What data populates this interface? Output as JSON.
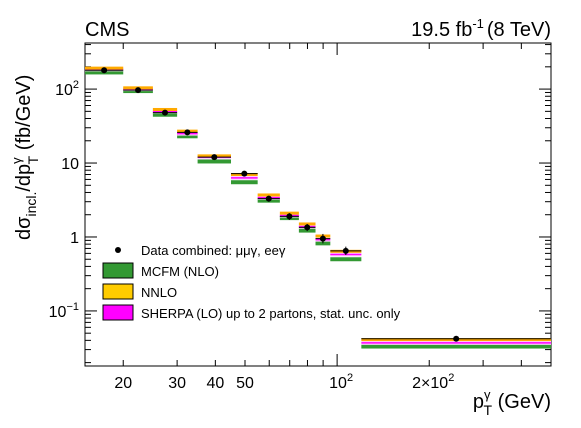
{
  "chart_data": {
    "type": "scatter",
    "experiment_label": "CMS",
    "lumi_label": {
      "value": "19.5 fb",
      "sup": "-1",
      "energy": "(8 TeV)"
    },
    "ylabel": {
      "d": "d",
      "sigma": "σ",
      "sub1": "incl.",
      "slash": "/dp",
      "sup2": "γ",
      "sub2": "T",
      "unit": " (fb/GeV)"
    },
    "xlabel": {
      "p": "p",
      "sup": "γ",
      "sub": "T",
      "unit": " (GeV)"
    },
    "x_scale": "log",
    "y_scale": "log",
    "xlim": [
      15,
      500
    ],
    "ylim": [
      0.018,
      420
    ],
    "x_ticks": [
      {
        "value": 20,
        "label": "20"
      },
      {
        "value": 30,
        "label": "30"
      },
      {
        "value": 40,
        "label": "40"
      },
      {
        "value": 50,
        "label": "50"
      },
      {
        "value": 100,
        "label": "10",
        "sup": "2"
      },
      {
        "value": 200,
        "label": "2×10",
        "sup": "2"
      }
    ],
    "y_ticks": [
      {
        "value": 0.1,
        "label": "10",
        "sup": "−1"
      },
      {
        "value": 1,
        "label": "1"
      },
      {
        "value": 10,
        "label": "10"
      },
      {
        "value": 100,
        "label": "10",
        "sup": "2"
      }
    ],
    "bins": [
      {
        "low": 15,
        "high": 20,
        "data": 180,
        "data_err_low": 165,
        "data_err_high": 195,
        "mcfm": 168,
        "nnlo": 192,
        "sherpa": 185
      },
      {
        "low": 20,
        "high": 25,
        "data": 97,
        "data_err_low": 91,
        "data_err_high": 103,
        "mcfm": 94,
        "nnlo": 104,
        "sherpa": 100
      },
      {
        "low": 25,
        "high": 30,
        "data": 48,
        "data_err_low": 45,
        "data_err_high": 51,
        "mcfm": 45,
        "nnlo": 53,
        "sherpa": 50
      },
      {
        "low": 30,
        "high": 35,
        "data": 26,
        "data_err_low": 24.5,
        "data_err_high": 27.5,
        "mcfm": 23,
        "nnlo": 27,
        "sherpa": 25
      },
      {
        "low": 35,
        "high": 45,
        "data": 12,
        "data_err_low": 11,
        "data_err_high": 13,
        "mcfm": 10.5,
        "nnlo": 12.5,
        "sherpa": 12
      },
      {
        "low": 45,
        "high": 55,
        "data": 7.2,
        "data_err_low": 6.6,
        "data_err_high": 7.8,
        "mcfm": 5.5,
        "nnlo": 7.0,
        "sherpa": 6.3
      },
      {
        "low": 55,
        "high": 65,
        "data": 3.3,
        "data_err_low": 3.0,
        "data_err_high": 3.6,
        "mcfm": 3.1,
        "nnlo": 3.7,
        "sherpa": 3.4
      },
      {
        "low": 65,
        "high": 75,
        "data": 1.9,
        "data_err_low": 1.7,
        "data_err_high": 2.1,
        "mcfm": 1.8,
        "nnlo": 2.1,
        "sherpa": 1.95
      },
      {
        "low": 75,
        "high": 85,
        "data": 1.35,
        "data_err_low": 1.2,
        "data_err_high": 1.5,
        "mcfm": 1.22,
        "nnlo": 1.5,
        "sherpa": 1.38
      },
      {
        "low": 85,
        "high": 95,
        "data": 0.95,
        "data_err_low": 0.82,
        "data_err_high": 1.1,
        "mcfm": 0.82,
        "nnlo": 1.03,
        "sherpa": 0.92
      },
      {
        "low": 95,
        "high": 120,
        "data": 0.65,
        "data_err_low": 0.57,
        "data_err_high": 0.74,
        "mcfm": 0.5,
        "nnlo": 0.64,
        "sherpa": 0.58
      },
      {
        "low": 120,
        "high": 500,
        "data": 0.042,
        "data_err_low": 0.04,
        "data_err_high": 0.044,
        "mcfm": 0.033,
        "nnlo": 0.041,
        "sherpa": 0.037
      }
    ],
    "legend": {
      "placement": "bottom-left",
      "entries": [
        {
          "key": "data",
          "label": "Data combined: μμγ, eeγ",
          "kind": "marker"
        },
        {
          "key": "mcfm",
          "label": "MCFM (NLO)",
          "kind": "box",
          "fill": "#339933",
          "stroke": "#000000"
        },
        {
          "key": "nnlo",
          "label": "NNLO",
          "kind": "box",
          "fill": "#ffcc00",
          "stroke": "#000000"
        },
        {
          "key": "sherpa",
          "label": "SHERPA (LO) up to 2 partons, stat. unc. only",
          "kind": "box",
          "fill": "#ff00ff",
          "stroke": "#000000"
        }
      ]
    },
    "colors": {
      "mcfm": "#339933",
      "nnlo": "#ffaa00",
      "sherpa": "#ff00ff",
      "sherpa_band": "#ffccff",
      "data": "#000000"
    },
    "grid": false
  }
}
